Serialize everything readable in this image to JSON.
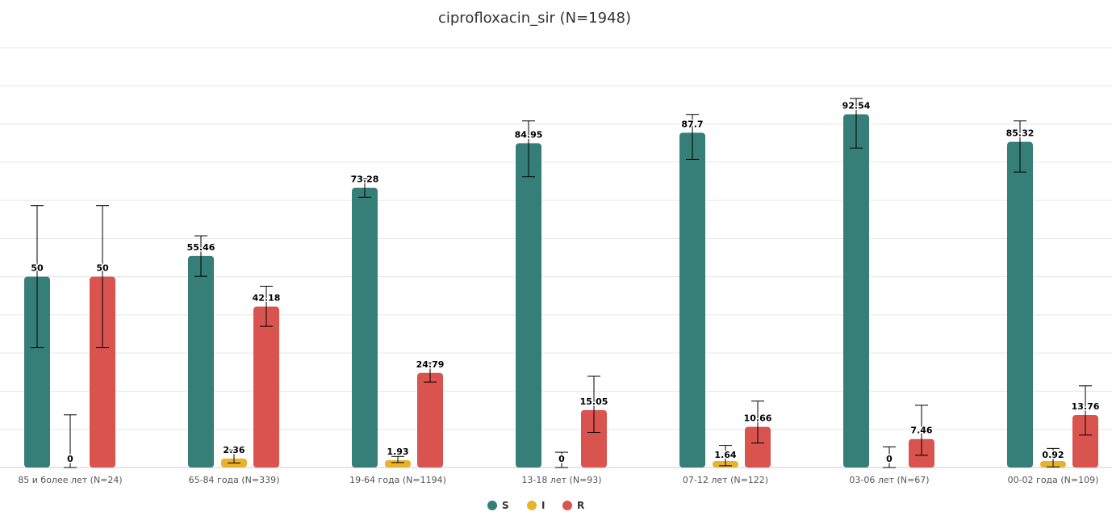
{
  "chart_data": {
    "type": "bar",
    "title": "ciprofloxacin_sir (N=1948)",
    "xlabel": "",
    "ylabel": "",
    "ylim": [
      0,
      110
    ],
    "grid": true,
    "legend_position": "bottom",
    "categories": [
      "85 и более лет (N=24)",
      "65-84 года (N=339)",
      "19-64 года (N=1194)",
      "13-18 лет (N=93)",
      "07-12 лет (N=122)",
      "03-06 лет (N=67)",
      "00-02 года (N=109)"
    ],
    "series": [
      {
        "name": "S",
        "color": "#367E78",
        "values": [
          50,
          55.46,
          73.28,
          84.95,
          87.7,
          92.54,
          85.32
        ],
        "error_low": [
          31.4,
          50.1,
          70.8,
          76.2,
          80.7,
          83.7,
          77.4
        ],
        "error_high": [
          68.6,
          60.7,
          75.6,
          90.8,
          92.5,
          96.7,
          90.8
        ]
      },
      {
        "name": "I",
        "color": "#E8B32C",
        "values": [
          0,
          2.36,
          1.93,
          0,
          1.64,
          0,
          0.92
        ],
        "error_low": [
          0,
          1.2,
          1.3,
          0,
          0.45,
          0,
          0.16
        ],
        "error_high": [
          13.8,
          4.6,
          2.9,
          4.0,
          5.8,
          5.4,
          5.0
        ]
      },
      {
        "name": "R",
        "color": "#D9534F",
        "values": [
          50,
          42.18,
          24.79,
          15.05,
          10.66,
          7.46,
          13.76
        ],
        "error_low": [
          31.4,
          37.0,
          22.4,
          9.2,
          6.4,
          3.2,
          8.5
        ],
        "error_high": [
          68.6,
          47.5,
          27.4,
          23.9,
          17.4,
          16.3,
          21.4
        ]
      }
    ]
  }
}
